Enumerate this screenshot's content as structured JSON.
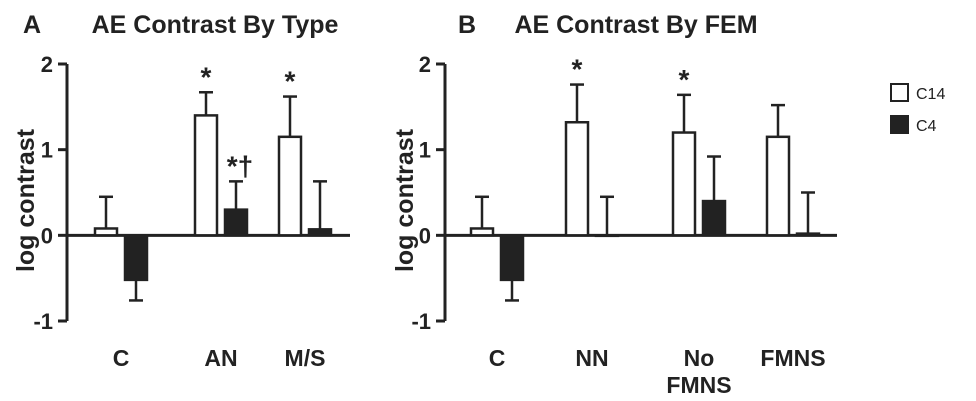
{
  "legend": {
    "position": "right",
    "items": [
      {
        "label": "C14",
        "color": "#ffffff"
      },
      {
        "label": "C4",
        "color": "#222222"
      }
    ]
  },
  "chart_data": [
    {
      "type": "bar",
      "panel": "A",
      "title": "AE Contrast By Type",
      "xlabel": "",
      "ylabel": "log contrast",
      "ylim": [
        -1,
        2
      ],
      "yticks": [
        "-1",
        "0",
        "1",
        "2"
      ],
      "categories": [
        "C",
        "AN",
        "M/S"
      ],
      "series": [
        {
          "name": "C14",
          "color": "#ffffff",
          "values": [
            0.08,
            1.4,
            1.15
          ],
          "err": [
            0.37,
            0.27,
            0.47
          ]
        },
        {
          "name": "C4",
          "color": "#222222",
          "values": [
            -0.52,
            0.3,
            0.07
          ],
          "err": [
            0.24,
            0.33,
            0.56
          ]
        }
      ],
      "annotations": [
        {
          "category": "AN",
          "series": "C14",
          "text": "*"
        },
        {
          "category": "AN",
          "series": "C4",
          "text": "*†"
        },
        {
          "category": "M/S",
          "series": "C14",
          "text": "*"
        }
      ]
    },
    {
      "type": "bar",
      "panel": "B",
      "title": "AE Contrast By FEM",
      "xlabel": "",
      "ylabel": "log contrast",
      "ylim": [
        -1,
        2
      ],
      "yticks": [
        "-1",
        "0",
        "1",
        "2"
      ],
      "categories": [
        "C",
        "NN",
        "No FMNS",
        "FMNS"
      ],
      "series": [
        {
          "name": "C14",
          "color": "#ffffff",
          "values": [
            0.08,
            1.32,
            1.2,
            1.15
          ],
          "err": [
            0.37,
            0.44,
            0.44,
            0.37
          ]
        },
        {
          "name": "C4",
          "color": "#222222",
          "values": [
            -0.52,
            0.0,
            0.4,
            0.02
          ],
          "err": [
            0.24,
            0.45,
            0.52,
            0.48
          ]
        }
      ],
      "annotations": [
        {
          "category": "NN",
          "series": "C14",
          "text": "*"
        },
        {
          "category": "No FMNS",
          "series": "C14",
          "text": "*"
        }
      ]
    }
  ]
}
